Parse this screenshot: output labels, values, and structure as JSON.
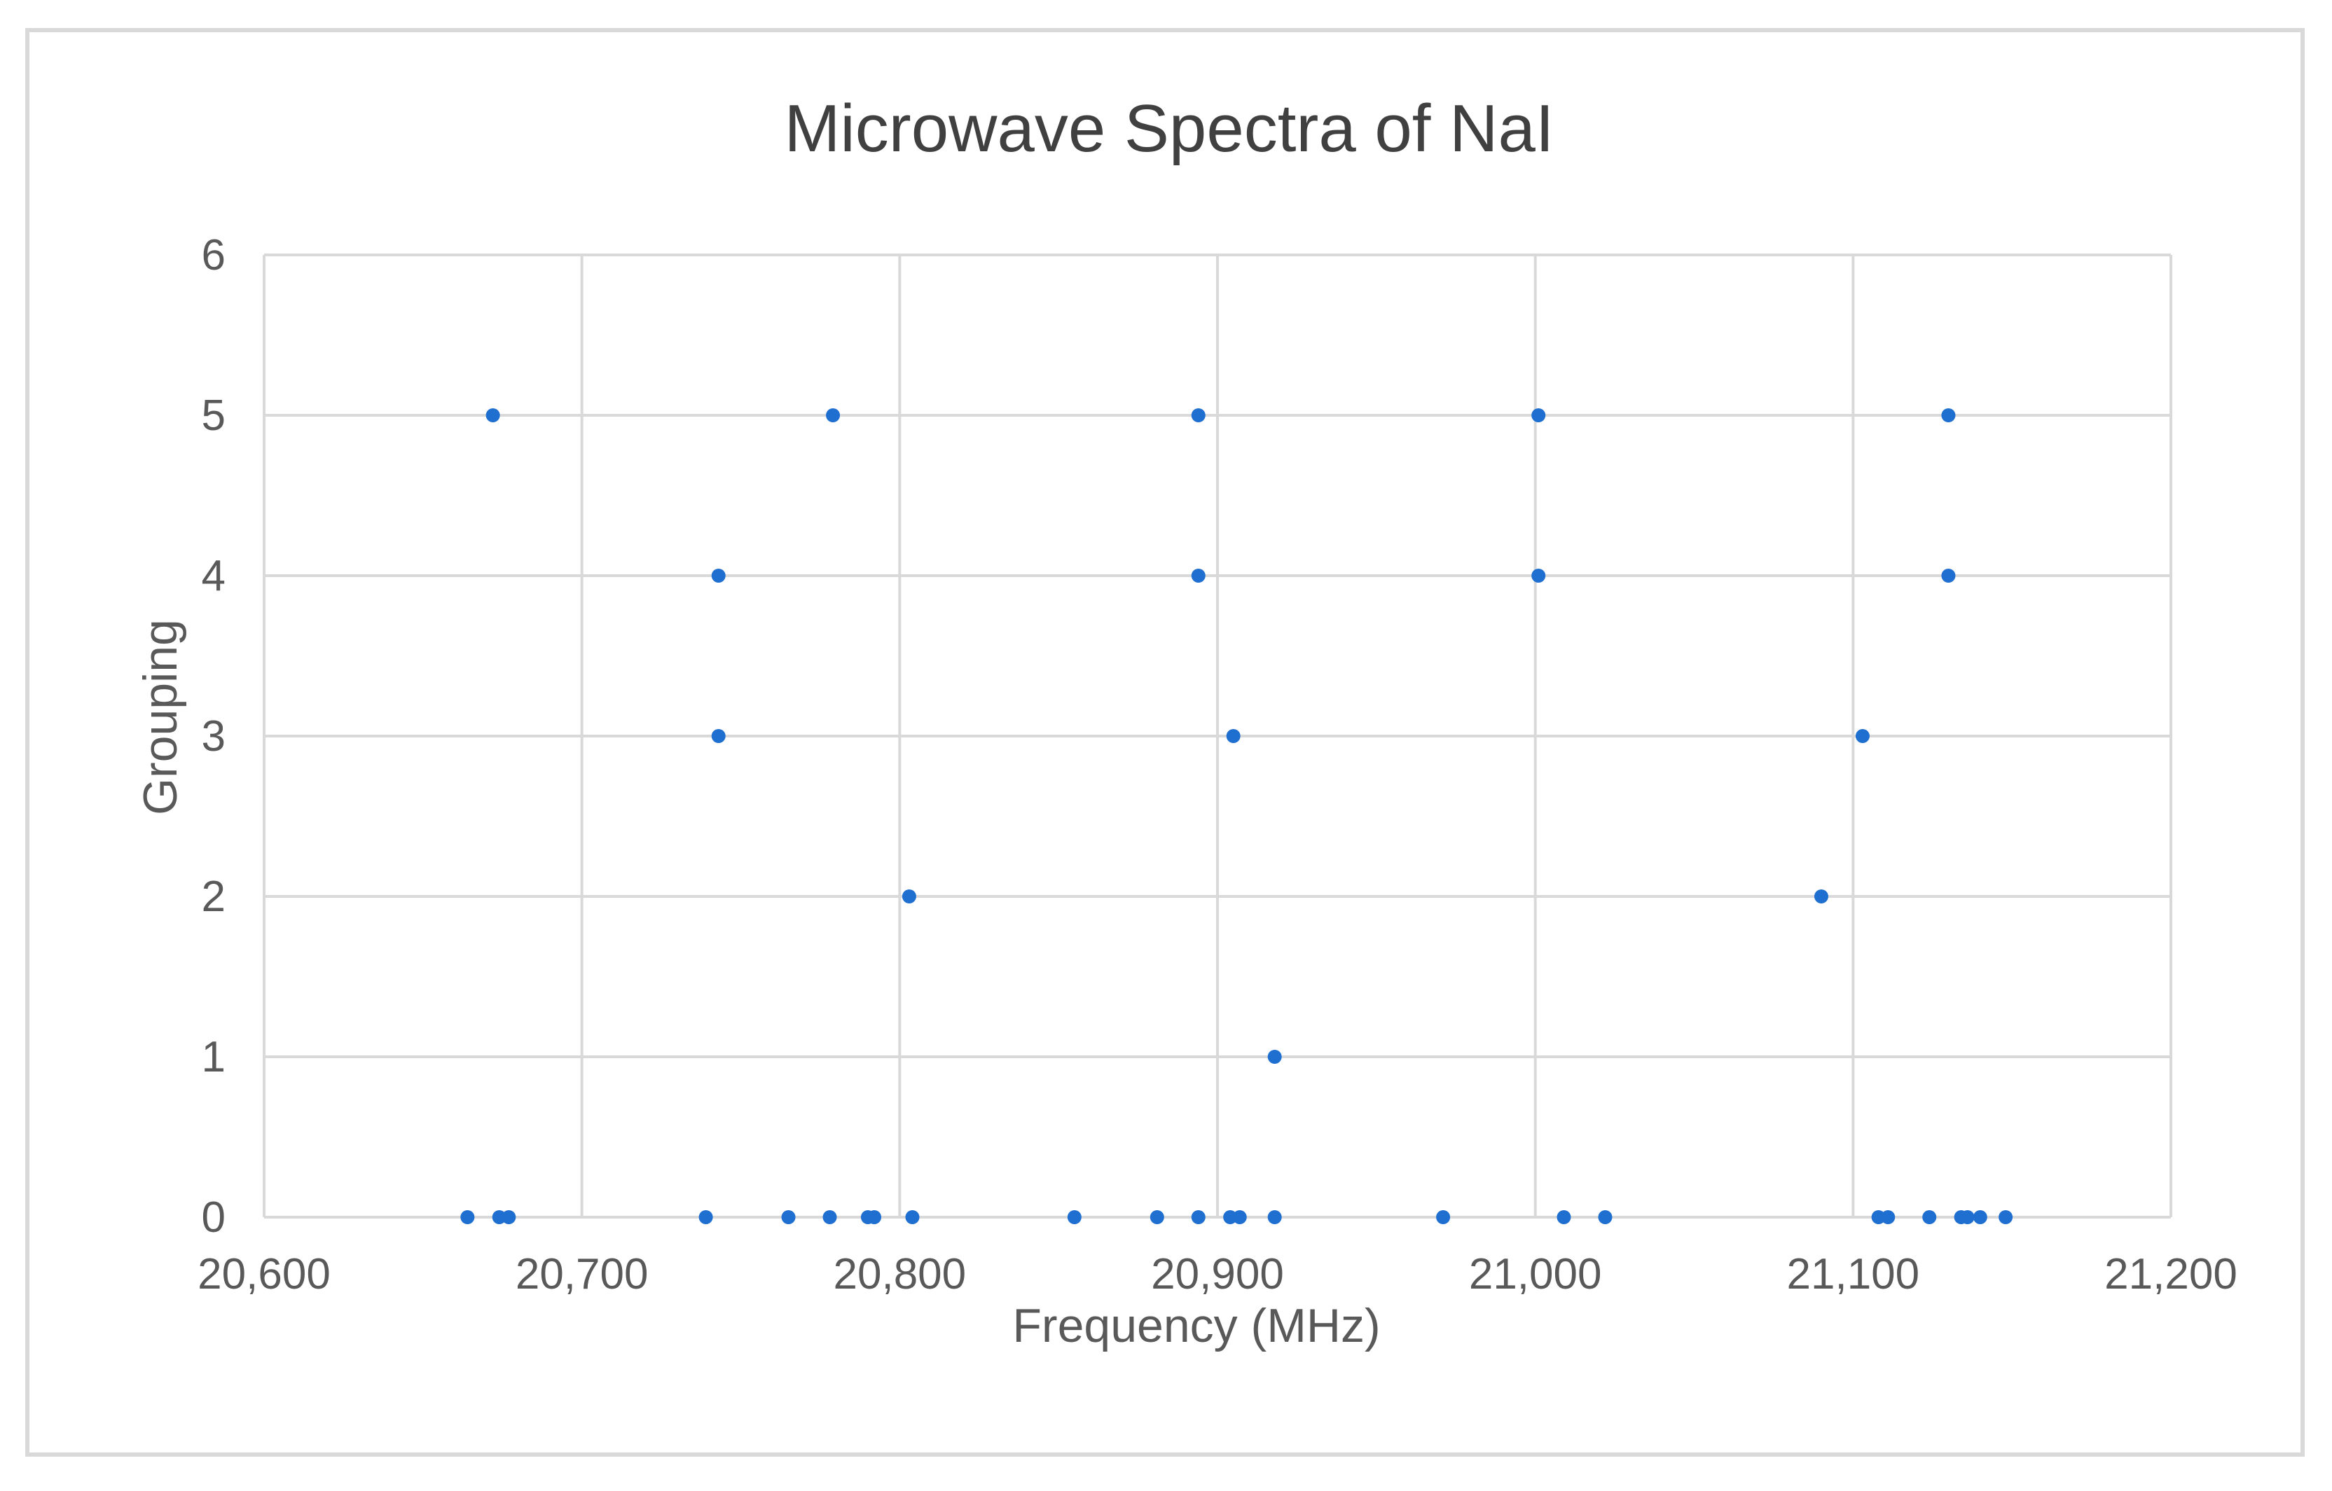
{
  "chart_data": {
    "type": "scatter",
    "title": "Microwave Spectra of NaI",
    "xlabel": "Frequency (MHz)",
    "ylabel": "Grouping",
    "xlim": [
      20600,
      21200
    ],
    "ylim": [
      0,
      6
    ],
    "x_ticks": [
      20600,
      20700,
      20800,
      20900,
      21000,
      21100,
      21200
    ],
    "x_tick_labels": [
      "20,600",
      "20,700",
      "20,800",
      "20,900",
      "21,000",
      "21,100",
      "21,200"
    ],
    "y_ticks": [
      0,
      1,
      2,
      3,
      4,
      5,
      6
    ],
    "y_tick_labels": [
      "0",
      "1",
      "2",
      "3",
      "4",
      "5",
      "6"
    ],
    "grid": true,
    "legend": "none",
    "color": "#1f6fd0",
    "series": [
      {
        "name": "Grouping",
        "points": [
          {
            "x": 20664,
            "y": 0
          },
          {
            "x": 20674,
            "y": 0
          },
          {
            "x": 20677,
            "y": 0
          },
          {
            "x": 20739,
            "y": 0
          },
          {
            "x": 20765,
            "y": 0
          },
          {
            "x": 20778,
            "y": 0
          },
          {
            "x": 20790,
            "y": 0
          },
          {
            "x": 20792,
            "y": 0
          },
          {
            "x": 20804,
            "y": 0
          },
          {
            "x": 20855,
            "y": 0
          },
          {
            "x": 20881,
            "y": 0
          },
          {
            "x": 20894,
            "y": 0
          },
          {
            "x": 20904,
            "y": 0
          },
          {
            "x": 20907,
            "y": 0
          },
          {
            "x": 20918,
            "y": 0
          },
          {
            "x": 20971,
            "y": 0
          },
          {
            "x": 21009,
            "y": 0
          },
          {
            "x": 21022,
            "y": 0
          },
          {
            "x": 21108,
            "y": 0
          },
          {
            "x": 21111,
            "y": 0
          },
          {
            "x": 21124,
            "y": 0
          },
          {
            "x": 21134,
            "y": 0
          },
          {
            "x": 21136,
            "y": 0
          },
          {
            "x": 21140,
            "y": 0
          },
          {
            "x": 21148,
            "y": 0
          },
          {
            "x": 20918,
            "y": 1
          },
          {
            "x": 20803,
            "y": 2
          },
          {
            "x": 21090,
            "y": 2
          },
          {
            "x": 20743,
            "y": 3
          },
          {
            "x": 20905,
            "y": 3
          },
          {
            "x": 21103,
            "y": 3
          },
          {
            "x": 20743,
            "y": 4
          },
          {
            "x": 20894,
            "y": 4
          },
          {
            "x": 21001,
            "y": 4
          },
          {
            "x": 21130,
            "y": 4
          },
          {
            "x": 20672,
            "y": 5
          },
          {
            "x": 20779,
            "y": 5
          },
          {
            "x": 20894,
            "y": 5
          },
          {
            "x": 21001,
            "y": 5
          },
          {
            "x": 21130,
            "y": 5
          }
        ]
      }
    ]
  }
}
